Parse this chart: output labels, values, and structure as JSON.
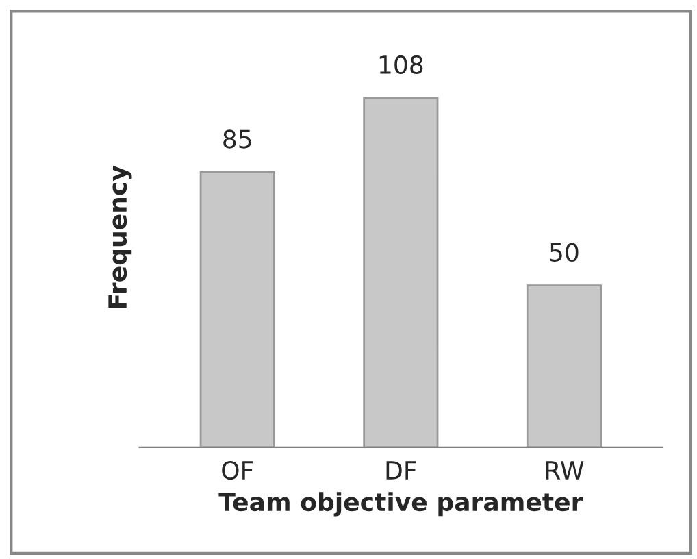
{
  "chart_data": {
    "type": "bar",
    "xlabel": "Team objective parameter",
    "ylabel": "Frequency",
    "categories": [
      "OF",
      "DF",
      "RW"
    ],
    "values": [
      85,
      108,
      50
    ],
    "color": "#c8c8c8",
    "data_labels": true,
    "grid": false,
    "legend": false,
    "tick_labels": "x"
  }
}
